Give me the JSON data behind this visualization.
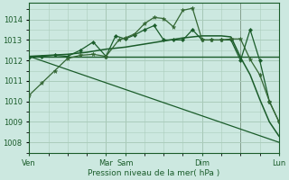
{
  "bg_color": "#cce8e0",
  "plot_bg": "#cce8e0",
  "grid_color": "#aaccbb",
  "line_dark": "#1a5c2a",
  "line_mid": "#336633",
  "xlabel": "Pression niveau de la mer( hPa )",
  "ylim": [
    1007.5,
    1014.8
  ],
  "yticks": [
    1008,
    1009,
    1010,
    1011,
    1012,
    1013,
    1014
  ],
  "xtick_labels": [
    "Ven",
    "Mar",
    "Sam",
    "Dim",
    "Lun"
  ],
  "xtick_positions": [
    0,
    24,
    30,
    54,
    78
  ],
  "vlines": [
    24,
    30,
    54,
    66,
    78
  ],
  "total_x": 78,
  "series_zigzag1": {
    "x": [
      0,
      4,
      8,
      12,
      16,
      20,
      24,
      28,
      30,
      33,
      36,
      39,
      42,
      45,
      48,
      51,
      54,
      57,
      60,
      63,
      66,
      69,
      72,
      75,
      78
    ],
    "y": [
      1010.3,
      1010.9,
      1011.5,
      1012.1,
      1012.25,
      1012.3,
      1012.2,
      1013.0,
      1013.1,
      1013.3,
      1013.8,
      1014.1,
      1014.05,
      1013.65,
      1014.45,
      1014.55,
      1013.0,
      1013.0,
      1013.0,
      1013.05,
      1013.05,
      1012.05,
      1011.3,
      1010.0,
      1009.0
    ]
  },
  "series_zigzag2": {
    "x": [
      0,
      4,
      8,
      12,
      16,
      20,
      24,
      27,
      30,
      33,
      36,
      39,
      42,
      45,
      48,
      51,
      54,
      57,
      60,
      63,
      66,
      69,
      72,
      75,
      78
    ],
    "y": [
      1012.15,
      1012.2,
      1012.25,
      1012.2,
      1012.5,
      1012.9,
      1012.2,
      1013.2,
      1013.05,
      1013.25,
      1013.5,
      1013.7,
      1013.0,
      1013.0,
      1013.0,
      1013.5,
      1013.0,
      1013.0,
      1013.0,
      1013.0,
      1012.0,
      1013.5,
      1012.0,
      1010.0,
      1009.0
    ]
  },
  "series_smooth": {
    "x": [
      0,
      6,
      12,
      18,
      24,
      30,
      36,
      42,
      48,
      54,
      60,
      63,
      66,
      69,
      72,
      75,
      78
    ],
    "y": [
      1012.2,
      1012.25,
      1012.3,
      1012.4,
      1012.55,
      1012.65,
      1012.8,
      1012.95,
      1013.1,
      1013.2,
      1013.2,
      1013.15,
      1012.15,
      1011.3,
      1010.1,
      1009.0,
      1008.3
    ]
  },
  "series_flat": {
    "x": [
      0,
      12,
      24,
      36,
      42,
      48,
      54,
      60,
      63,
      66,
      69,
      72,
      75,
      78
    ],
    "y": [
      1012.2,
      1012.2,
      1012.2,
      1012.2,
      1012.2,
      1012.2,
      1012.2,
      1012.2,
      1012.2,
      1012.2,
      1012.2,
      1012.2,
      1012.2,
      1012.2
    ]
  },
  "series_descending": {
    "x": [
      0,
      78
    ],
    "y": [
      1012.2,
      1008.0
    ]
  }
}
